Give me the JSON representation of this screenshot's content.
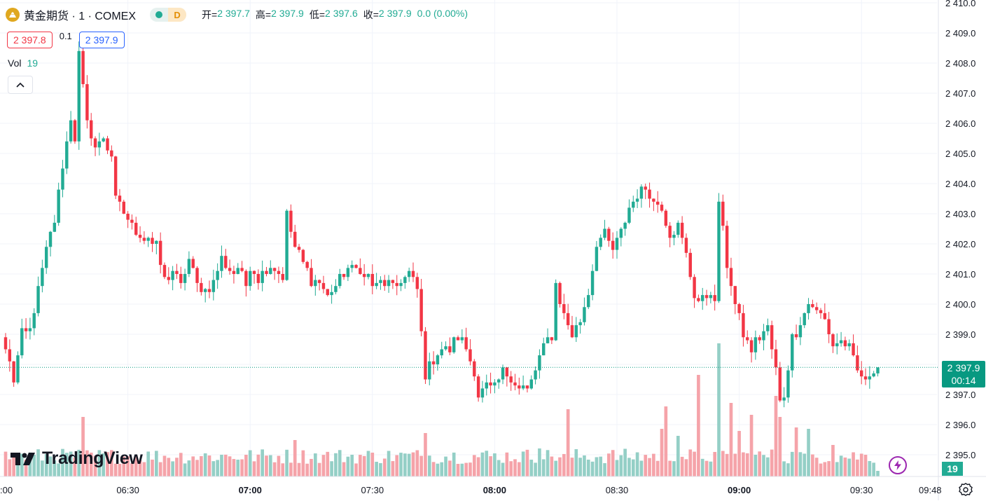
{
  "header": {
    "symbol_title": "黄金期货 · 1 · COMEX",
    "status_d": "D",
    "ohlc": [
      {
        "label": "开=",
        "value": "2 397.7"
      },
      {
        "label": "高=",
        "value": "2 397.9"
      },
      {
        "label": "低=",
        "value": "2 397.6"
      },
      {
        "label": "收=",
        "value": "2 397.9"
      },
      {
        "label": "",
        "value": "0.0 (0.00%)"
      }
    ],
    "sell_price": "2 397.8",
    "spread": "0.1",
    "buy_price": "2 397.9",
    "volume_label": "Vol",
    "volume_value": "19"
  },
  "logo": {
    "text": "TradingView"
  },
  "last_price": {
    "price": "2 397.9",
    "countdown": "00:14"
  },
  "volume_axis_value": "19",
  "colors": {
    "up": "#22ab94",
    "down": "#f23645",
    "vol_up": "#94cfc6",
    "vol_down": "#f5a3a9",
    "grid": "#f0f3fa",
    "text": "#131722"
  },
  "chart_data": {
    "type": "candlestick",
    "timeframe": "1m",
    "y_axis": {
      "ticks": [
        "2 395.0",
        "2 396.0",
        "2 397.0",
        "2 398.0",
        "2 399.0",
        "2 400.0",
        "2 401.0",
        "2 402.0",
        "2 403.0",
        "2 404.0",
        "2 405.0",
        "2 406.0",
        "2 407.0",
        "2 408.0",
        "2 409.0",
        "2 410.0"
      ],
      "range": [
        2394.8,
        2410.1
      ]
    },
    "x_axis": {
      "ticks": [
        ":00",
        "06:30",
        "07:00",
        "07:30",
        "08:00",
        "08:30",
        "09:00",
        "09:30",
        "09:48"
      ],
      "bold_ticks": [
        "07:00",
        "08:00",
        "09:00"
      ]
    },
    "last_value": 2397.9,
    "close_path": [
      [
        0,
        2398.5
      ],
      [
        2,
        2397.5
      ],
      [
        4,
        2399.0
      ],
      [
        6,
        2399.1
      ],
      [
        8,
        2400.5
      ],
      [
        10,
        2401.8
      ],
      [
        12,
        2402.8
      ],
      [
        14,
        2404.6
      ],
      [
        16,
        2406.2
      ],
      [
        17,
        2405.5
      ],
      [
        18,
        2408.3
      ],
      [
        20,
        2406.0
      ],
      [
        22,
        2405.2
      ],
      [
        24,
        2405.4
      ],
      [
        25,
        2405.2
      ],
      [
        26,
        2404.9
      ],
      [
        27,
        2403.5
      ],
      [
        29,
        2403.0
      ],
      [
        31,
        2402.6
      ],
      [
        33,
        2402.3
      ],
      [
        35,
        2402.2
      ],
      [
        37,
        2401.8
      ],
      [
        39,
        2400.8
      ],
      [
        41,
        2401.1
      ],
      [
        43,
        2400.6
      ],
      [
        45,
        2401.5
      ],
      [
        47,
        2400.6
      ],
      [
        49,
        2400.4
      ],
      [
        51,
        2400.7
      ],
      [
        53,
        2401.5
      ],
      [
        55,
        2401.1
      ],
      [
        57,
        2401.2
      ],
      [
        59,
        2400.6
      ],
      [
        60,
        2401.3
      ],
      [
        62,
        2400.8
      ],
      [
        64,
        2401.3
      ],
      [
        66,
        2401.2
      ],
      [
        68,
        2400.9
      ],
      [
        69,
        2403.0
      ],
      [
        71,
        2401.9
      ],
      [
        73,
        2401.4
      ],
      [
        75,
        2400.8
      ],
      [
        77,
        2400.7
      ],
      [
        79,
        2400.2
      ],
      [
        81,
        2400.6
      ],
      [
        83,
        2401.1
      ],
      [
        85,
        2401.2
      ],
      [
        87,
        2401.2
      ],
      [
        89,
        2400.8
      ],
      [
        91,
        2400.5
      ],
      [
        93,
        2400.7
      ],
      [
        95,
        2400.6
      ],
      [
        97,
        2400.8
      ],
      [
        99,
        2401.0
      ],
      [
        101,
        2400.5
      ],
      [
        102,
        2399.0
      ],
      [
        103,
        2397.6
      ],
      [
        105,
        2398.2
      ],
      [
        107,
        2398.5
      ],
      [
        109,
        2398.5
      ],
      [
        111,
        2399.0
      ],
      [
        113,
        2398.5
      ],
      [
        115,
        2397.8
      ],
      [
        116,
        2397.0
      ],
      [
        118,
        2397.3
      ],
      [
        120,
        2397.2
      ],
      [
        122,
        2397.8
      ],
      [
        124,
        2397.6
      ],
      [
        126,
        2397.2
      ],
      [
        128,
        2397.1
      ],
      [
        130,
        2397.8
      ],
      [
        132,
        2398.6
      ],
      [
        134,
        2399.0
      ],
      [
        135,
        2400.7
      ],
      [
        137,
        2399.6
      ],
      [
        139,
        2399.0
      ],
      [
        141,
        2399.4
      ],
      [
        143,
        2400.4
      ],
      [
        145,
        2402.0
      ],
      [
        147,
        2402.3
      ],
      [
        149,
        2401.8
      ],
      [
        151,
        2402.4
      ],
      [
        153,
        2403.2
      ],
      [
        155,
        2403.6
      ],
      [
        157,
        2403.9
      ],
      [
        159,
        2403.5
      ],
      [
        161,
        2403.2
      ],
      [
        163,
        2402.3
      ],
      [
        165,
        2402.6
      ],
      [
        167,
        2401.6
      ],
      [
        169,
        2400.3
      ],
      [
        171,
        2400.2
      ],
      [
        173,
        2400.3
      ],
      [
        174,
        2400.0
      ],
      [
        175,
        2403.5
      ],
      [
        177,
        2401.3
      ],
      [
        179,
        2400.0
      ],
      [
        181,
        2399.0
      ],
      [
        183,
        2398.5
      ],
      [
        185,
        2399.0
      ],
      [
        187,
        2399.2
      ],
      [
        189,
        2397.8
      ],
      [
        190,
        2396.7
      ],
      [
        191,
        2397.0
      ],
      [
        193,
        2398.9
      ],
      [
        195,
        2399.4
      ],
      [
        197,
        2400.0
      ],
      [
        199,
        2399.8
      ],
      [
        201,
        2399.5
      ],
      [
        203,
        2398.6
      ],
      [
        205,
        2398.8
      ],
      [
        207,
        2398.5
      ],
      [
        209,
        2397.8
      ],
      [
        211,
        2397.5
      ],
      [
        213,
        2397.8
      ],
      [
        214,
        2397.9
      ]
    ]
  }
}
